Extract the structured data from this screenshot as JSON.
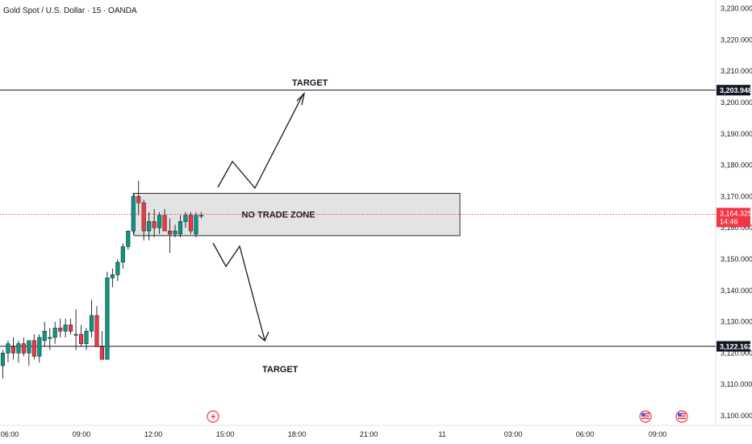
{
  "chart_title": "Gold Spot / U.S. Dollar · 15 · OANDA",
  "chart_data": {
    "type": "candlestick",
    "y_ticks": [
      "3,230.000",
      "3,220.000",
      "3,210.000",
      "3,200.000",
      "3,190.000",
      "3,180.000",
      "3,170.000",
      "3,160.000",
      "3,150.000",
      "3,140.000",
      "3,130.000",
      "3,120.000",
      "3,110.000",
      "3,100.000"
    ],
    "y_tick_values": [
      3230,
      3220,
      3210,
      3200,
      3190,
      3180,
      3170,
      3160,
      3150,
      3140,
      3130,
      3120,
      3110,
      3100
    ],
    "ylim": [
      3097,
      3233
    ],
    "x_labels": [
      "06:00",
      "09:00",
      "12:00",
      "15:00",
      "18:00",
      "21:00",
      "11",
      "03:00",
      "06:00",
      "09:00"
    ],
    "current_price": {
      "value": "3,164.325",
      "countdown": "14:46",
      "color": "#f23645"
    },
    "levels": [
      {
        "value": 3203.948,
        "label": "3,203.948"
      },
      {
        "value": 3122.162,
        "label": "3,122.162"
      }
    ],
    "zone": {
      "label": "NO TRADE ZONE",
      "top": 3171,
      "bottom": 3157.5
    },
    "annotations": {
      "target_up": "TARGET",
      "target_down": "TARGET"
    },
    "up_color": "#089981",
    "down_color": "#f23645",
    "candles": [
      {
        "o": 3116,
        "h": 3121,
        "l": 3112,
        "c": 3120
      },
      {
        "o": 3120,
        "h": 3124,
        "l": 3117,
        "c": 3123
      },
      {
        "o": 3122,
        "h": 3125,
        "l": 3118,
        "c": 3120
      },
      {
        "o": 3120,
        "h": 3124,
        "l": 3117,
        "c": 3123
      },
      {
        "o": 3123,
        "h": 3125,
        "l": 3119,
        "c": 3120
      },
      {
        "o": 3120,
        "h": 3124,
        "l": 3116,
        "c": 3124
      },
      {
        "o": 3124,
        "h": 3126,
        "l": 3118,
        "c": 3119
      },
      {
        "o": 3119,
        "h": 3126,
        "l": 3117,
        "c": 3125
      },
      {
        "o": 3124,
        "h": 3130,
        "l": 3122,
        "c": 3127
      },
      {
        "o": 3125,
        "h": 3128,
        "l": 3121,
        "c": 3125
      },
      {
        "o": 3125,
        "h": 3130,
        "l": 3123,
        "c": 3128
      },
      {
        "o": 3128,
        "h": 3131,
        "l": 3125,
        "c": 3127
      },
      {
        "o": 3127,
        "h": 3131,
        "l": 3125,
        "c": 3129
      },
      {
        "o": 3129,
        "h": 3131,
        "l": 3126,
        "c": 3127
      },
      {
        "o": 3126,
        "h": 3134,
        "l": 3121,
        "c": 3126
      },
      {
        "o": 3126,
        "h": 3129,
        "l": 3122,
        "c": 3123
      },
      {
        "o": 3123,
        "h": 3128,
        "l": 3121,
        "c": 3127
      },
      {
        "o": 3127,
        "h": 3137,
        "l": 3125,
        "c": 3132
      },
      {
        "o": 3132,
        "h": 3135,
        "l": 3122,
        "c": 3122
      },
      {
        "o": 3122,
        "h": 3127,
        "l": 3118,
        "c": 3118
      },
      {
        "o": 3118,
        "h": 3146,
        "l": 3118,
        "c": 3144
      },
      {
        "o": 3144,
        "h": 3147,
        "l": 3141,
        "c": 3145
      },
      {
        "o": 3145,
        "h": 3150,
        "l": 3143,
        "c": 3149
      },
      {
        "o": 3149,
        "h": 3155,
        "l": 3147,
        "c": 3154
      },
      {
        "o": 3154,
        "h": 3159,
        "l": 3153,
        "c": 3159
      },
      {
        "o": 3159,
        "h": 3171,
        "l": 3158,
        "c": 3170
      },
      {
        "o": 3170,
        "h": 3175,
        "l": 3164,
        "c": 3168
      },
      {
        "o": 3168,
        "h": 3169,
        "l": 3156,
        "c": 3159
      },
      {
        "o": 3159,
        "h": 3165,
        "l": 3156,
        "c": 3162
      },
      {
        "o": 3162,
        "h": 3166,
        "l": 3157,
        "c": 3160
      },
      {
        "o": 3160,
        "h": 3165,
        "l": 3158,
        "c": 3164
      },
      {
        "o": 3164,
        "h": 3166,
        "l": 3159,
        "c": 3159
      },
      {
        "o": 3159,
        "h": 3163,
        "l": 3152,
        "c": 3158
      },
      {
        "o": 3158,
        "h": 3161,
        "l": 3157,
        "c": 3159
      },
      {
        "o": 3158,
        "h": 3164,
        "l": 3157,
        "c": 3162
      },
      {
        "o": 3162,
        "h": 3165,
        "l": 3160,
        "c": 3164
      },
      {
        "o": 3164,
        "h": 3165,
        "l": 3158,
        "c": 3159
      },
      {
        "o": 3158,
        "h": 3165,
        "l": 3157,
        "c": 3164
      },
      {
        "o": 3164,
        "h": 3165,
        "l": 3163,
        "c": 3164
      }
    ]
  },
  "icons": {
    "event_flash": "lightning-icon",
    "event_flag_1": "us-flag-icon",
    "event_flag_2": "us-flag-icon"
  }
}
